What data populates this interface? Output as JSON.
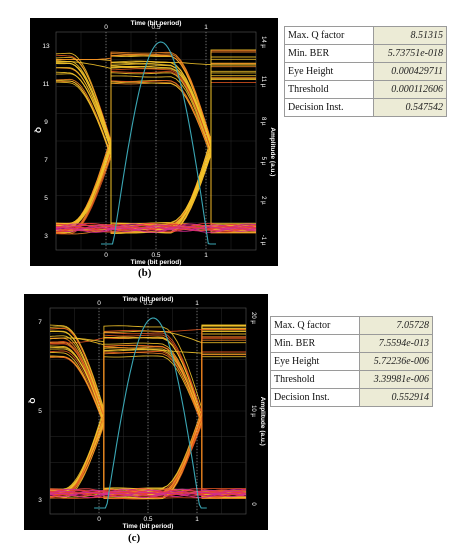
{
  "panels": [
    {
      "label": "(b)",
      "top_axis_title": "Time (bit period)",
      "bottom_axis_title": "Time (bit period)",
      "top_ticks": [
        "0",
        "0.5",
        "1"
      ],
      "bottom_ticks": [
        "0",
        "0.5",
        "1"
      ],
      "left_axis_label": "Q",
      "left_ticks": [
        "3",
        "5",
        "7",
        "9",
        "11",
        "13"
      ],
      "right_axis_label": "Amplitude (a.u.)",
      "right_ticks": [
        "-1 µ",
        "2 µ",
        "5 µ",
        "8 µ",
        "11 µ",
        "14 µ"
      ],
      "metrics": [
        {
          "label": "Max. Q factor",
          "value": "8.51315"
        },
        {
          "label": "Min. BER",
          "value": "5.73751e-018"
        },
        {
          "label": "Eye Height",
          "value": "0.000429711"
        },
        {
          "label": "Threshold",
          "value": "0.000112606"
        },
        {
          "label": "Decision Inst.",
          "value": "0.547542"
        }
      ]
    },
    {
      "label": "(c)",
      "top_axis_title": "Time (bit period)",
      "bottom_axis_title": "Time (bit period)",
      "top_ticks": [
        "0",
        "0.5",
        "1"
      ],
      "bottom_ticks": [
        "0",
        "0.5",
        "1"
      ],
      "left_axis_label": "Q",
      "left_ticks": [
        "3",
        "5",
        "7"
      ],
      "right_axis_label": "Amplitude (a.u.)",
      "right_ticks": [
        "0",
        "10 µ",
        "20 µ"
      ],
      "metrics": [
        {
          "label": "Max. Q factor",
          "value": "7.05728"
        },
        {
          "label": "Min. BER",
          "value": "7.5594e-013"
        },
        {
          "label": "Eye Height",
          "value": "5.72236e-006"
        },
        {
          "label": "Threshold",
          "value": "3.39981e-006"
        },
        {
          "label": "Decision Inst.",
          "value": "0.552914"
        }
      ]
    }
  ],
  "chart_data": [
    {
      "type": "line",
      "x": "Time (bit period)",
      "xlim": [
        -0.5,
        1.5
      ],
      "q_factor_curve_peak": 8.51315,
      "decision_instant": 0.547542,
      "colors": {
        "background": "#000000",
        "traces": "#f2c32a",
        "traces_alt": "#e0541f",
        "zero_level": "#d02a90",
        "q_curve": "#3aa6b4"
      }
    },
    {
      "type": "line",
      "x": "Time (bit period)",
      "xlim": [
        -0.5,
        1.5
      ],
      "q_factor_curve_peak": 7.05728,
      "decision_instant": 0.552914,
      "colors": {
        "background": "#000000",
        "traces": "#f2c32a",
        "traces_alt": "#e0541f",
        "zero_level": "#d02a90",
        "q_curve": "#3aa6b4"
      }
    }
  ]
}
